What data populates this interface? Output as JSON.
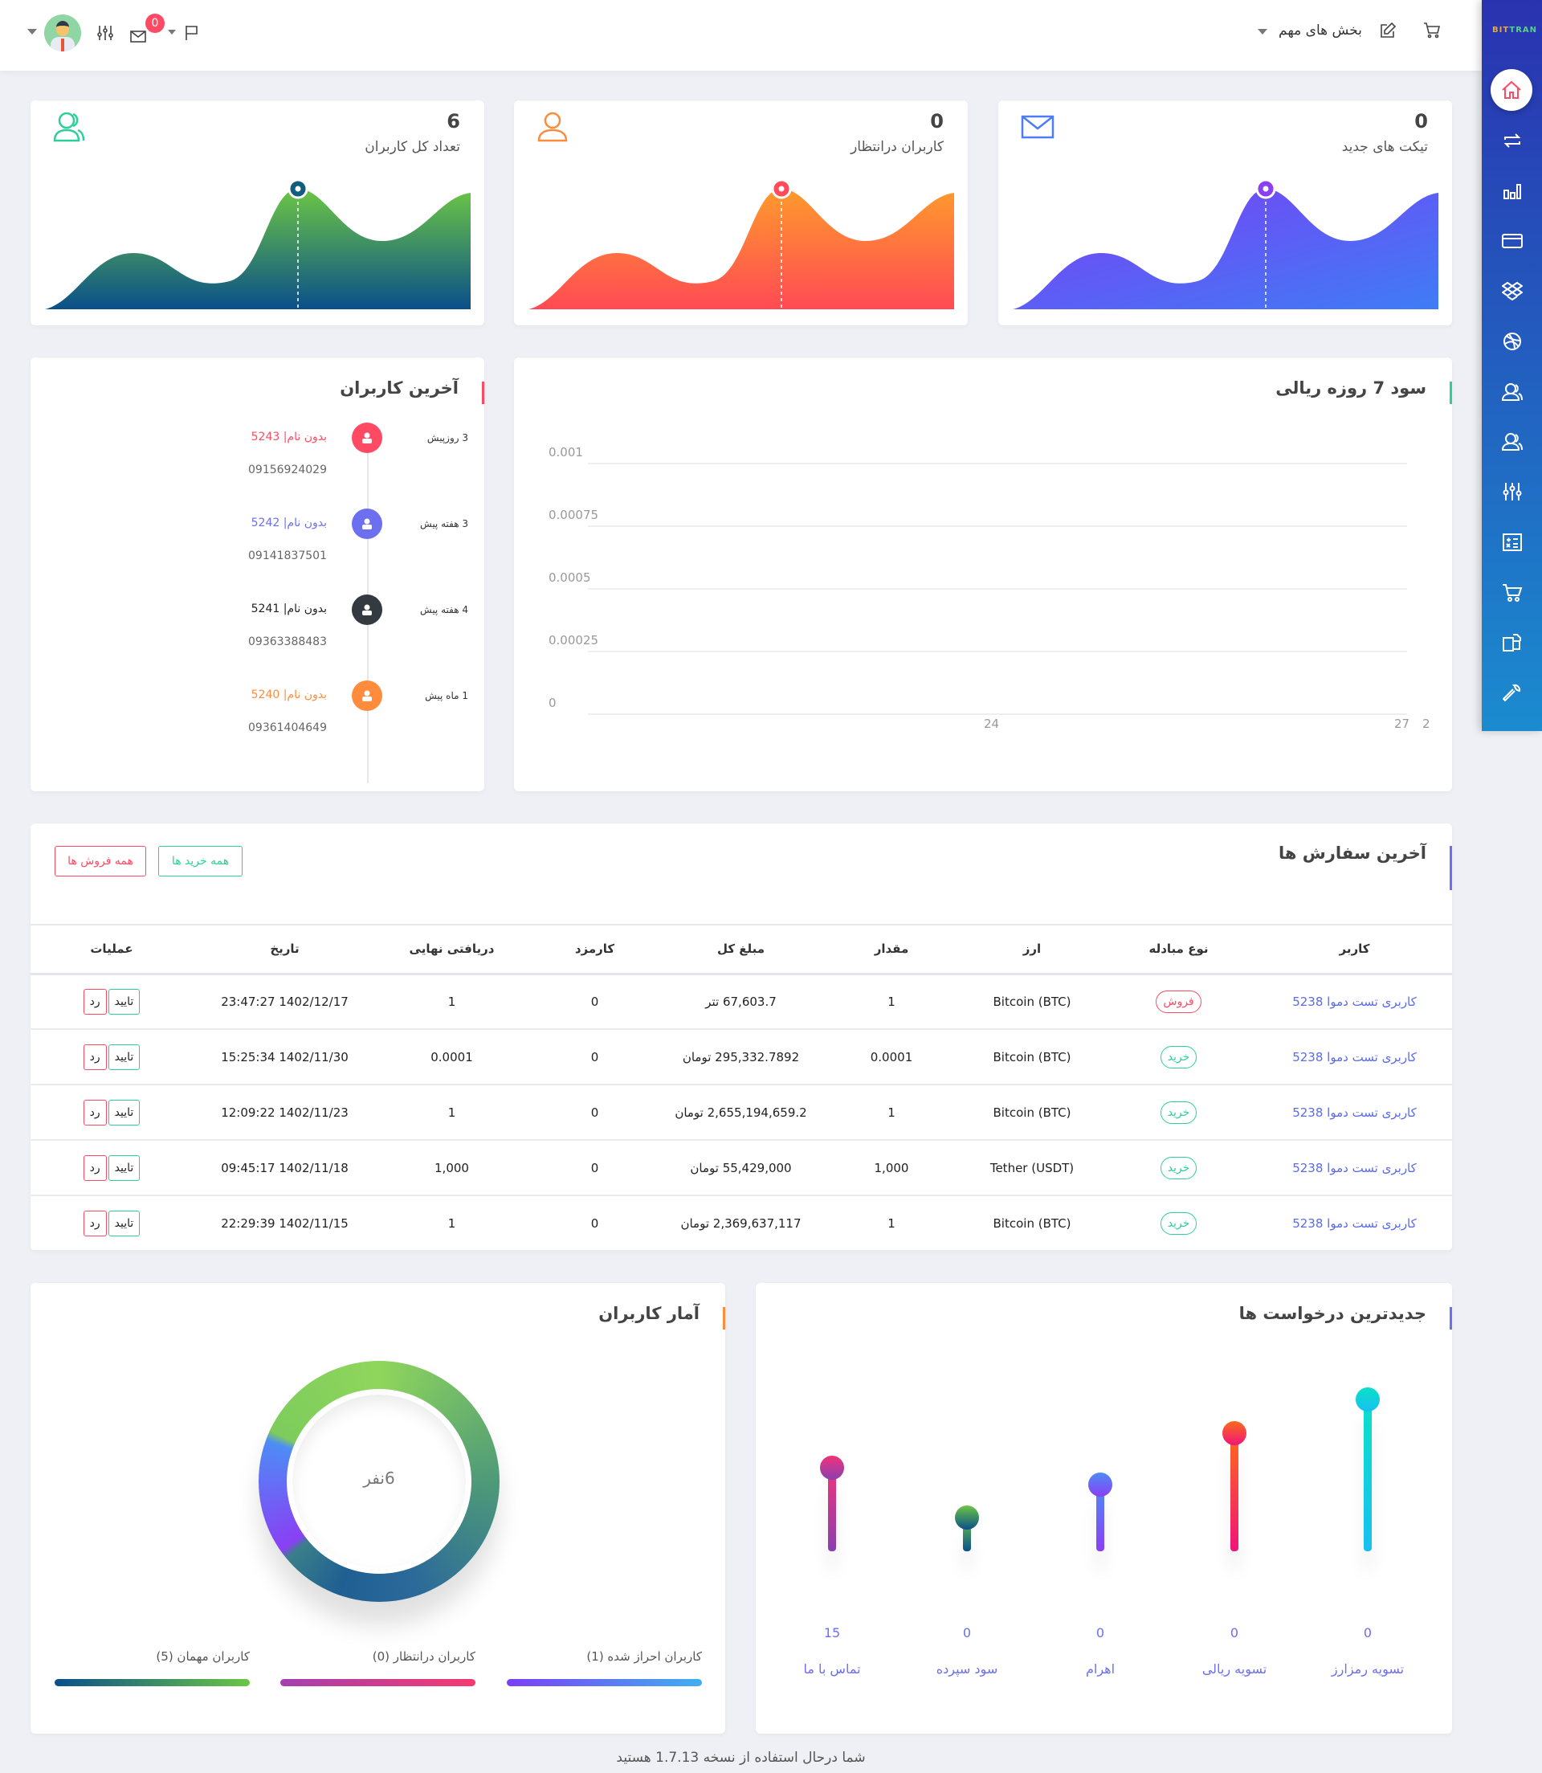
{
  "header": {
    "important_sections_label": "بخش های مهم",
    "notification_count": "0",
    "icons": [
      "caret-down-icon",
      "avatar",
      "sliders-icon",
      "mail-icon",
      "caret-down-icon",
      "flag-icon",
      "cart-icon",
      "edit-icon"
    ]
  },
  "sidebar": {
    "logo": {
      "part1": "BIT",
      "part2": "TRAN"
    },
    "items": [
      "home",
      "exchange",
      "bar-chart",
      "credit-card",
      "dropbox",
      "dribbble",
      "user",
      "users",
      "sliders",
      "calculator",
      "cart",
      "copy",
      "wrench"
    ],
    "active": "home"
  },
  "stats": [
    {
      "value": "6",
      "label": "تعداد کل کاربران",
      "icon": "user-icon",
      "color": "#2ccf9a"
    },
    {
      "value": "0",
      "label": "کاربران درانتظار",
      "icon": "user-icon",
      "color": "#fb8c3c"
    },
    {
      "value": "0",
      "label": "تیکت های جدید",
      "icon": "mail-icon",
      "color": "#4d7cf5"
    }
  ],
  "latest_users": {
    "title": "آخرین کاربران",
    "items": [
      {
        "time": "3 روزپیش",
        "name": "بدون نام| 5243",
        "phone": "09156924029",
        "color": "#ff4a63"
      },
      {
        "time": "3 هفته پیش",
        "name": "بدون نام| 5242",
        "phone": "09141837501",
        "color": "#6b6ff0"
      },
      {
        "time": "4 هفته پیش",
        "name": "بدون نام| 5241",
        "phone": "09363388483",
        "color": "#343a40"
      },
      {
        "time": "1 ماه پیش",
        "name": "بدون نام| 5240",
        "phone": "09361404649",
        "color": "#ff8c3c"
      }
    ]
  },
  "chart_data": {
    "type": "line",
    "title": "سود 7 روزه ریالی",
    "ylim": [
      0,
      0.001
    ],
    "yticks": [
      "0.001",
      "0.00075",
      "0.0005",
      "0.00025",
      "0"
    ],
    "xticks": [
      "24",
      "27",
      "2"
    ],
    "grid": true
  },
  "orders": {
    "title": "آخرین سفارش ها",
    "all_buys_label": "همه خرید ها",
    "all_sells_label": "همه فروش ها",
    "columns": [
      "کاربر",
      "نوع مبادله",
      "ارز",
      "مقدار",
      "مبلغ کل",
      "کارمزد",
      "دریافتی نهایی",
      "تاریخ",
      "عملیات"
    ],
    "approve_label": "تایید",
    "reject_label": "رد",
    "rows": [
      {
        "user": "کاربری تست دموا 5238",
        "type": "فروش",
        "type_kind": "sell",
        "currency": "Bitcoin (BTC)",
        "amount": "1",
        "total": "67,603.7 تتر",
        "fee": "0",
        "final": "1",
        "date": "1402/12/17 23:47:27"
      },
      {
        "user": "کاربری تست دموا 5238",
        "type": "خرید",
        "type_kind": "buy",
        "currency": "Bitcoin (BTC)",
        "amount": "0.0001",
        "total": "295,332.7892 تومان",
        "fee": "0",
        "final": "0.0001",
        "date": "1402/11/30 15:25:34"
      },
      {
        "user": "کاربری تست دموا 5238",
        "type": "خرید",
        "type_kind": "buy",
        "currency": "Bitcoin (BTC)",
        "amount": "1",
        "total": "2,655,194,659.2 تومان",
        "fee": "0",
        "final": "1",
        "date": "1402/11/23 12:09:22"
      },
      {
        "user": "کاربری تست دموا 5238",
        "type": "خرید",
        "type_kind": "buy",
        "currency": "Tether (USDT)",
        "amount": "1,000",
        "total": "55,429,000 تومان",
        "fee": "0",
        "final": "1,000",
        "date": "1402/11/18 09:45:17"
      },
      {
        "user": "کاربری تست دموا 5238",
        "type": "خرید",
        "type_kind": "buy",
        "currency": "Bitcoin (BTC)",
        "amount": "1",
        "total": "2,369,637,117 تومان",
        "fee": "0",
        "final": "1",
        "date": "1402/11/15 22:29:39"
      }
    ]
  },
  "user_stats": {
    "title": "آمار کاربران",
    "center_label": "6نفر",
    "legend": [
      {
        "label": "کاربران احراز شده (1)",
        "count": 1
      },
      {
        "label": "کاربران درانتظار (0)",
        "count": 0
      },
      {
        "label": "کاربران مهمان (5)",
        "count": 5
      }
    ]
  },
  "requests": {
    "title": "جدیدترین درخواست ها",
    "items": [
      {
        "label": "تسویه رمزارز",
        "value": "0"
      },
      {
        "label": "تسویه ریالی",
        "value": "0"
      },
      {
        "label": "اهرام",
        "value": "0"
      },
      {
        "label": "سود سپرده",
        "value": "0"
      },
      {
        "label": "تماس با ما",
        "value": "15"
      }
    ]
  },
  "footer": {
    "text": "شما درحال استفاده از نسخه 1.7.13 هستید"
  }
}
